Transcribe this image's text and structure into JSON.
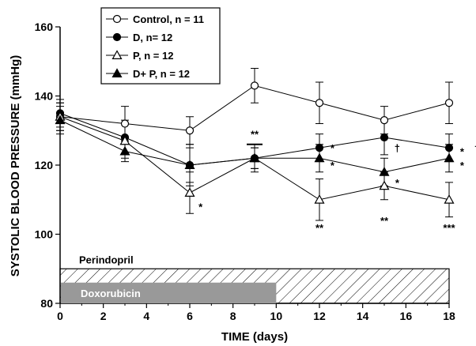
{
  "chart_data": {
    "type": "line",
    "xlabel": "TIME (days)",
    "ylabel": "SYSTOLIC BLOOD PRESSURE (mmHg)",
    "xlim": [
      0,
      18
    ],
    "ylim": [
      80,
      160
    ],
    "xticks": [
      0,
      2,
      4,
      6,
      8,
      10,
      12,
      14,
      16,
      18
    ],
    "yticks": [
      80,
      100,
      120,
      140,
      160
    ],
    "grid": false,
    "legend_position": "top-left",
    "series": [
      {
        "name": "Control, n = 11",
        "marker": "circle-open",
        "x": [
          0,
          3,
          6,
          9,
          12,
          15,
          18
        ],
        "y": [
          134,
          132,
          130,
          143,
          138,
          133,
          138
        ],
        "err": [
          4,
          5,
          4,
          5,
          6,
          4,
          6
        ]
      },
      {
        "name": "D, n= 12",
        "marker": "circle-filled",
        "x": [
          0,
          3,
          6,
          9,
          12,
          15,
          18
        ],
        "y": [
          135,
          128,
          120,
          122,
          125,
          128,
          125
        ],
        "err": [
          4,
          5,
          6,
          4,
          4,
          5,
          4
        ]
      },
      {
        "name": "P, n = 12",
        "marker": "triangle-open",
        "x": [
          0,
          3,
          6,
          9,
          12,
          15,
          18
        ],
        "y": [
          134,
          127,
          112,
          122,
          110,
          114,
          110
        ],
        "err": [
          4,
          5,
          6,
          3,
          6,
          4,
          5
        ]
      },
      {
        "name": "D+ P, n = 12",
        "marker": "triangle-filled",
        "x": [
          0,
          3,
          6,
          9,
          12,
          15,
          18
        ],
        "y": [
          133,
          124,
          120,
          122,
          122,
          118,
          122
        ],
        "err": [
          4,
          3,
          5,
          3,
          4,
          4,
          4
        ]
      }
    ],
    "annotations": [
      {
        "text": "*",
        "x": 6.5,
        "y": 108
      },
      {
        "text": "**",
        "x": 9,
        "y": 129
      },
      {
        "text": "**",
        "x": 12,
        "y": 102
      },
      {
        "text": "*",
        "x": 12.6,
        "y": 125
      },
      {
        "text": "*",
        "x": 12.6,
        "y": 120
      },
      {
        "text": "†",
        "x": 15.6,
        "y": 125
      },
      {
        "text": "*",
        "x": 15.6,
        "y": 115
      },
      {
        "text": "**",
        "x": 15,
        "y": 104
      },
      {
        "text": "***",
        "x": 18,
        "y": 102
      },
      {
        "text": "*",
        "x": 18.6,
        "y": 124
      },
      {
        "text": "*",
        "x": 18.6,
        "y": 120
      },
      {
        "text": "†",
        "x": 19.3,
        "y": 125
      }
    ],
    "treatments": [
      {
        "label": "Perindopril",
        "start": 0,
        "end": 18,
        "style": "hatched"
      },
      {
        "label": "Doxorubicin",
        "start": 0,
        "end": 10,
        "style": "solid-gray"
      }
    ]
  }
}
